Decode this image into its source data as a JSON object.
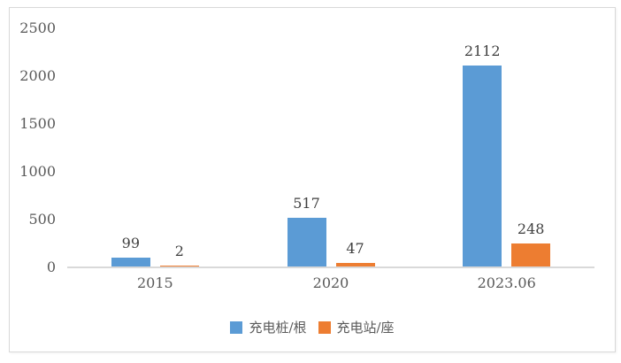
{
  "chart_data": {
    "type": "bar",
    "categories": [
      "2015",
      "2020",
      "2023.06"
    ],
    "series": [
      {
        "name": "充电桩/根",
        "color": "#5B9BD5",
        "values": [
          99,
          517,
          2112
        ]
      },
      {
        "name": "充电站/座",
        "color": "#ED7D31",
        "values": [
          2,
          47,
          248
        ]
      }
    ],
    "title": "",
    "xlabel": "",
    "ylabel": "",
    "ylim": [
      0,
      2500
    ],
    "yticks": [
      "0",
      "500",
      "1000",
      "1500",
      "2000",
      "2500"
    ],
    "grid": false,
    "legend_position": "bottom",
    "data_labels": true
  },
  "palette": {
    "panel-border": "#D9D9D9",
    "axis-line": "#D9D9D9",
    "tick-text": "#595959",
    "value-text": "#3F3F3F"
  }
}
